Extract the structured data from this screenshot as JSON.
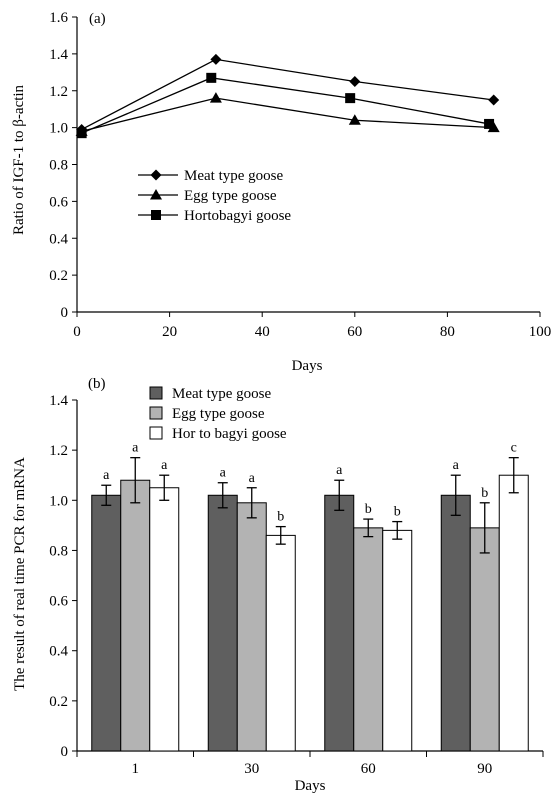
{
  "chart_data": [
    {
      "panel_label": "(a)",
      "type": "line",
      "xlabel": "Days",
      "ylabel": "Ratio of IGF-1 to β-actin",
      "xlim": [
        0,
        100
      ],
      "ylim": [
        0,
        1.6
      ],
      "x_ticks": [
        "0",
        "20",
        "40",
        "60",
        "80",
        "100"
      ],
      "y_ticks": [
        "0",
        "0.2",
        "0.4",
        "0.6",
        "0.8",
        "1.0",
        "1.2",
        "1.4",
        "1.6"
      ],
      "legend_position": "center-left",
      "series": [
        {
          "name": "Meat type goose",
          "marker": "diamond",
          "x": [
            1,
            30,
            60,
            90
          ],
          "y": [
            0.99,
            1.37,
            1.25,
            1.15
          ]
        },
        {
          "name": "Egg type goose",
          "marker": "triangle",
          "x": [
            1,
            30,
            60,
            90
          ],
          "y": [
            0.98,
            1.16,
            1.04,
            1.0
          ]
        },
        {
          "name": "Hortobagyi goose",
          "marker": "square",
          "x": [
            1,
            29,
            59,
            89
          ],
          "y": [
            0.97,
            1.27,
            1.16,
            1.02
          ]
        }
      ]
    },
    {
      "panel_label": "(b)",
      "type": "bar",
      "xlabel": "Days",
      "ylabel": "The result of real time PCR for mRNA",
      "ylim": [
        0,
        1.4
      ],
      "categories": [
        "1",
        "30",
        "60",
        "90"
      ],
      "y_ticks": [
        "0",
        "0.2",
        "0.4",
        "0.6",
        "0.8",
        "1.0",
        "1.2",
        "1.4"
      ],
      "legend_position": "top-left",
      "series": [
        {
          "name": "Meat type goose",
          "color": "#5f5f5f",
          "values": [
            1.02,
            1.02,
            1.02,
            1.02
          ],
          "errors": [
            0.04,
            0.05,
            0.06,
            0.08
          ],
          "labels": [
            "a",
            "a",
            "a",
            "a"
          ]
        },
        {
          "name": "Egg type goose",
          "color": "#b3b3b3",
          "values": [
            1.08,
            0.99,
            0.89,
            0.89
          ],
          "errors": [
            0.09,
            0.06,
            0.035,
            0.1
          ],
          "labels": [
            "a",
            "a",
            "b",
            "b"
          ]
        },
        {
          "name": "Hor to bagyi goose",
          "color": "#ffffff",
          "values": [
            1.05,
            0.86,
            0.88,
            1.1
          ],
          "errors": [
            0.05,
            0.035,
            0.035,
            0.07
          ],
          "labels": [
            "a",
            "b",
            "b",
            "c"
          ]
        }
      ]
    }
  ]
}
